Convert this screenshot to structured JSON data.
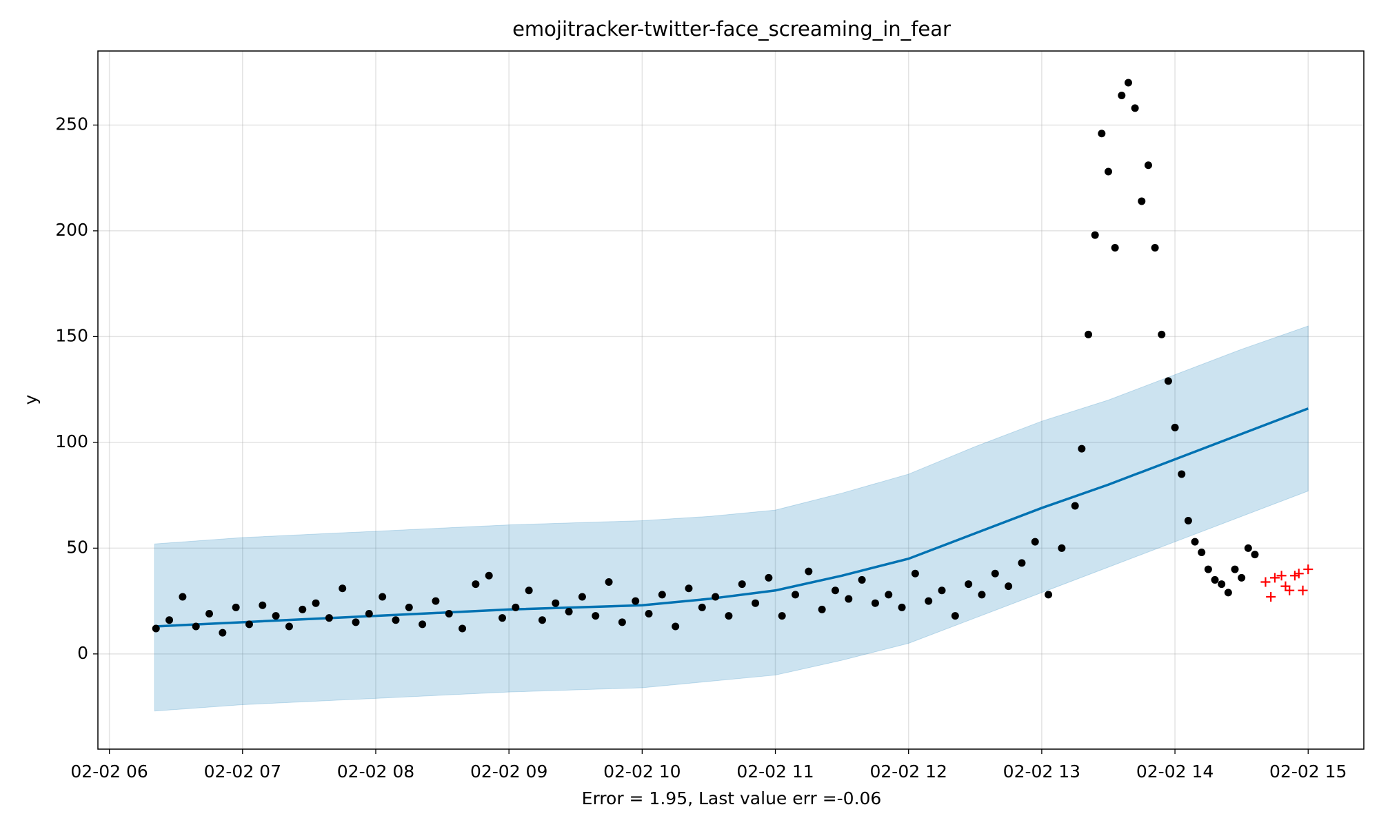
{
  "chart_data": {
    "type": "scatter",
    "title": "emojitracker-twitter-face_screaming_in_fear",
    "xlabel": "Error = 1.95, Last value err =-0.06",
    "ylabel": "y",
    "xlim": [
      5.914,
      15.418
    ],
    "ylim": [
      -45,
      285
    ],
    "grid": true,
    "xticks": [
      {
        "value": 6,
        "label": "02-02 06"
      },
      {
        "value": 7,
        "label": "02-02 07"
      },
      {
        "value": 8,
        "label": "02-02 08"
      },
      {
        "value": 9,
        "label": "02-02 09"
      },
      {
        "value": 10,
        "label": "02-02 10"
      },
      {
        "value": 11,
        "label": "02-02 11"
      },
      {
        "value": 12,
        "label": "02-02 12"
      },
      {
        "value": 13,
        "label": "02-02 13"
      },
      {
        "value": 14,
        "label": "02-02 14"
      },
      {
        "value": 15,
        "label": "02-02 15"
      }
    ],
    "yticks": [
      0,
      50,
      100,
      150,
      200,
      250
    ],
    "forecast": {
      "color": "#0072b2",
      "band_color": "#0072b2",
      "x": [
        6.34,
        7,
        8,
        9,
        10,
        10.5,
        11,
        11.5,
        12,
        12.5,
        13,
        13.5,
        14,
        14.5,
        15
      ],
      "values": [
        13,
        15,
        18,
        21,
        23,
        26,
        30,
        37,
        45,
        57,
        69,
        80,
        92,
        104,
        116
      ],
      "upper": [
        52,
        55,
        58,
        61,
        63,
        65,
        68,
        76,
        85,
        98,
        110,
        120,
        132,
        144,
        155
      ],
      "lower": [
        -27,
        -24,
        -21,
        -18,
        -16,
        -13,
        -10,
        -3,
        5,
        17,
        29,
        41,
        53,
        65,
        77
      ]
    },
    "observed": {
      "color": "#000000",
      "x": [
        6.35,
        6.45,
        6.55,
        6.65,
        6.75,
        6.85,
        6.95,
        7.05,
        7.15,
        7.25,
        7.35,
        7.45,
        7.55,
        7.65,
        7.75,
        7.85,
        7.95,
        8.05,
        8.15,
        8.25,
        8.35,
        8.45,
        8.55,
        8.65,
        8.75,
        8.85,
        8.95,
        9.05,
        9.15,
        9.25,
        9.35,
        9.45,
        9.55,
        9.65,
        9.75,
        9.85,
        9.95,
        10.05,
        10.15,
        10.25,
        10.35,
        10.45,
        10.55,
        10.65,
        10.75,
        10.85,
        10.95,
        11.05,
        11.15,
        11.25,
        11.35,
        11.45,
        11.55,
        11.65,
        11.75,
        11.85,
        11.95,
        12.05,
        12.15,
        12.25,
        12.35,
        12.45,
        12.55,
        12.65,
        12.75,
        12.85,
        12.95,
        13.05,
        13.15,
        13.25,
        13.3,
        13.35,
        13.4,
        13.45,
        13.5,
        13.55,
        13.6,
        13.65,
        13.7,
        13.75,
        13.8,
        13.85,
        13.9,
        13.95,
        14.0,
        14.05,
        14.1,
        14.15,
        14.2,
        14.25,
        14.3,
        14.35,
        14.4,
        14.45,
        14.5,
        14.55,
        14.6
      ],
      "values": [
        12,
        16,
        27,
        13,
        19,
        10,
        22,
        14,
        23,
        18,
        13,
        21,
        24,
        17,
        31,
        15,
        19,
        27,
        16,
        22,
        14,
        25,
        19,
        12,
        33,
        37,
        17,
        22,
        30,
        16,
        24,
        20,
        27,
        18,
        34,
        15,
        25,
        19,
        28,
        13,
        31,
        22,
        27,
        18,
        33,
        24,
        36,
        18,
        28,
        39,
        21,
        30,
        26,
        35,
        24,
        28,
        22,
        38,
        25,
        30,
        18,
        33,
        28,
        38,
        32,
        43,
        53,
        28,
        50,
        70,
        97,
        151,
        198,
        246,
        228,
        192,
        264,
        270,
        258,
        214,
        231,
        192,
        151,
        129,
        107,
        85,
        63,
        53,
        48,
        40,
        35,
        33,
        29,
        40,
        36,
        50,
        47
      ]
    },
    "future": {
      "color": "#ff0000",
      "x": [
        14.68,
        14.72,
        14.75,
        14.8,
        14.83,
        14.86,
        14.9,
        14.93,
        14.96,
        15.0
      ],
      "values": [
        34,
        27,
        36,
        37,
        32,
        30,
        37,
        38,
        30,
        40
      ]
    }
  }
}
